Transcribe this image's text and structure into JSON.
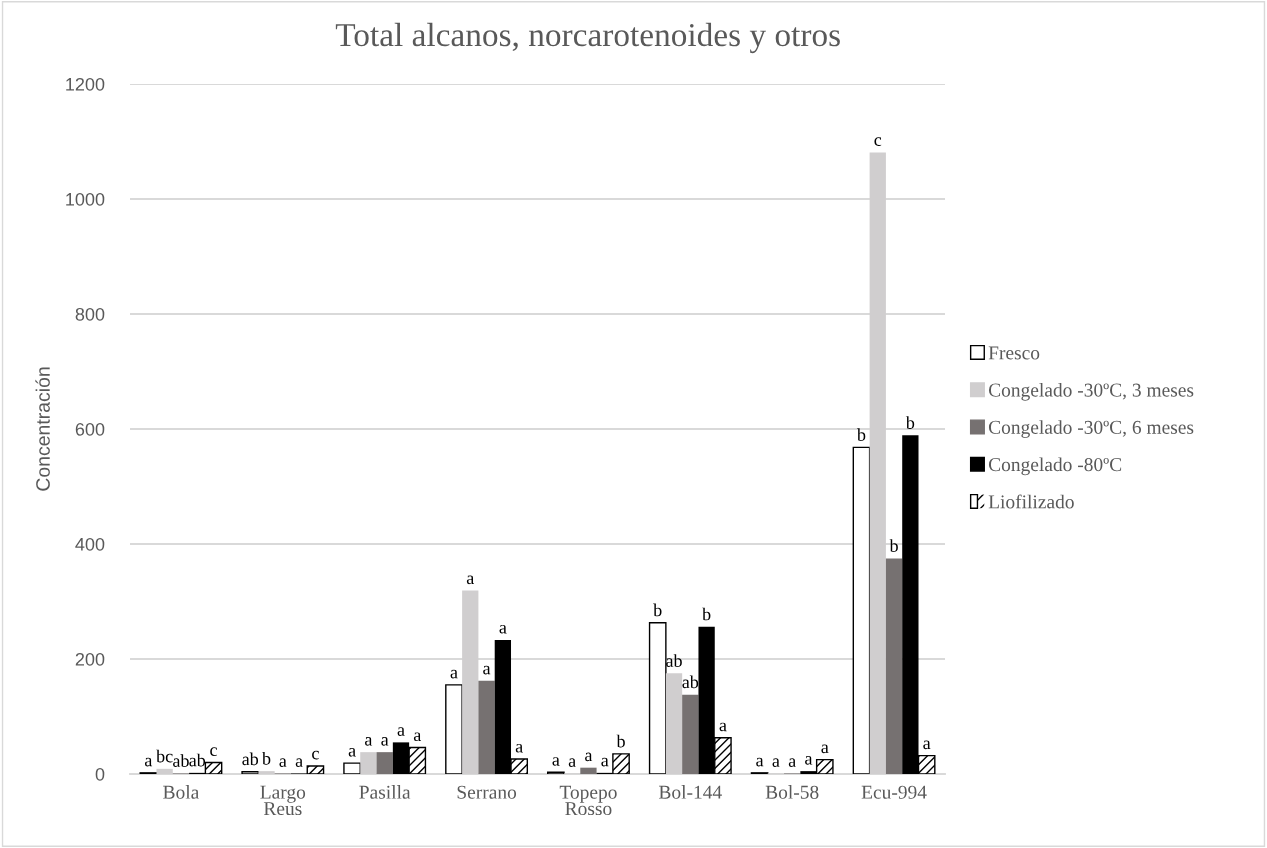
{
  "chart_data": {
    "type": "bar",
    "title": "Total alcanos, norcarotenoides y otros",
    "ylabel": "Concentración",
    "categories": [
      "Bola",
      "Largo\nReus",
      "Pasilla",
      "Serrano",
      "Topepo\nRosso",
      "Bol-144",
      "Bol-58",
      "Ecu-994"
    ],
    "series": [
      {
        "name": "Fresco",
        "color": "#ffffff",
        "values": [
          2,
          4,
          19,
          155,
          3,
          263,
          2,
          568
        ],
        "value_labels": [
          "a",
          "ab",
          "a",
          "a",
          "a",
          "b",
          "a",
          "b"
        ]
      },
      {
        "name": "Congelado -30ºC, 3 meses",
        "color": "#d0cecf",
        "values": [
          9,
          5,
          38,
          319,
          1,
          175,
          1,
          1081
        ],
        "value_labels": [
          "bc",
          "b",
          "a",
          "a",
          "a",
          "ab",
          "a",
          "c"
        ]
      },
      {
        "name": "Congelado -30ºC, 6 meses",
        "color": "#767171",
        "values": [
          1,
          1,
          38,
          162,
          11,
          138,
          1,
          375
        ],
        "value_labels": [
          "ab",
          "a",
          "a",
          "a",
          "a",
          "ab",
          "a",
          "b"
        ]
      },
      {
        "name": "Congelado -80ºC",
        "color": "#000000",
        "values": [
          2,
          1,
          55,
          233,
          2,
          256,
          5,
          589
        ],
        "value_labels": [
          "ab",
          "a",
          "a",
          "a",
          "a",
          "b",
          "a",
          "b"
        ]
      },
      {
        "name": "Liofilizado",
        "color": "#ffffff",
        "values": [
          20,
          14,
          46,
          26,
          35,
          63,
          25,
          32
        ],
        "value_labels": [
          "c",
          "c",
          "a",
          "a",
          "b",
          "a",
          "a",
          "a"
        ]
      }
    ],
    "ylim": [
      0,
      1200
    ],
    "yticks": [
      0,
      200,
      400,
      600,
      800,
      1000,
      1200
    ],
    "grid": "y",
    "legend": "right"
  }
}
